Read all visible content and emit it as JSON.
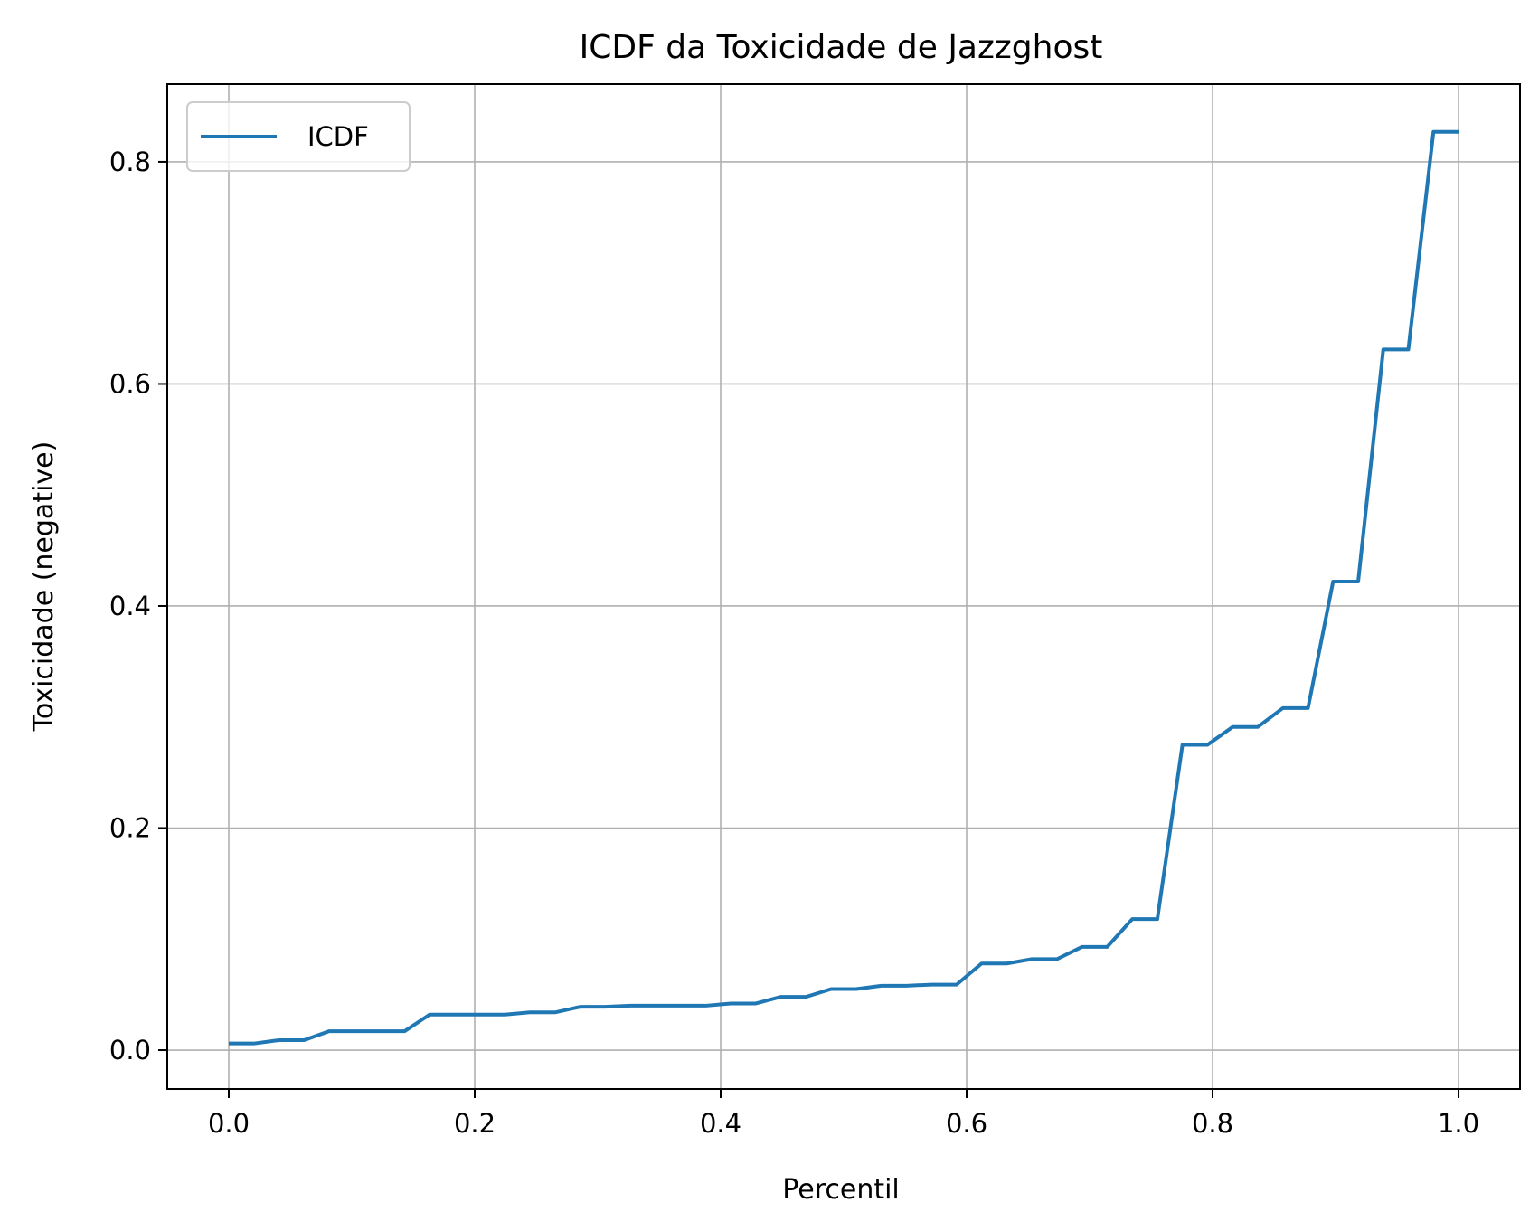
{
  "chart_data": {
    "type": "line",
    "title": "ICDF da Toxicidade de Jazzghost",
    "xlabel": "Percentil",
    "ylabel": "Toxicidade (negative)",
    "xlim": [
      -0.05,
      1.05
    ],
    "ylim": [
      -0.035,
      0.87
    ],
    "xticks": [
      0.0,
      0.2,
      0.4,
      0.6,
      0.8,
      1.0
    ],
    "xtick_labels": [
      "0.0",
      "0.2",
      "0.4",
      "0.6",
      "0.8",
      "1.0"
    ],
    "yticks": [
      0.0,
      0.2,
      0.4,
      0.6,
      0.8
    ],
    "ytick_labels": [
      "0.0",
      "0.2",
      "0.4",
      "0.6",
      "0.8"
    ],
    "grid": true,
    "legend_position": "top-left",
    "series": [
      {
        "name": "ICDF",
        "color": "#1f77b4",
        "x": [
          0.0,
          0.0204,
          0.0408,
          0.0612,
          0.0816,
          0.102,
          0.1224,
          0.1429,
          0.1633,
          0.1837,
          0.2041,
          0.2245,
          0.2449,
          0.2653,
          0.2857,
          0.3061,
          0.3265,
          0.3469,
          0.3673,
          0.3878,
          0.4082,
          0.4286,
          0.449,
          0.4694,
          0.4898,
          0.5102,
          0.5306,
          0.551,
          0.5714,
          0.5918,
          0.6122,
          0.6327,
          0.6531,
          0.6735,
          0.6939,
          0.7143,
          0.7347,
          0.7551,
          0.7755,
          0.7959,
          0.8163,
          0.8367,
          0.8571,
          0.8776,
          0.898,
          0.9184,
          0.9388,
          0.9592,
          0.9796,
          1.0
        ],
        "y": [
          0.006,
          0.006,
          0.009,
          0.009,
          0.017,
          0.017,
          0.017,
          0.017,
          0.032,
          0.032,
          0.032,
          0.032,
          0.034,
          0.034,
          0.039,
          0.039,
          0.04,
          0.04,
          0.04,
          0.04,
          0.042,
          0.042,
          0.048,
          0.048,
          0.055,
          0.055,
          0.058,
          0.058,
          0.059,
          0.059,
          0.078,
          0.078,
          0.082,
          0.082,
          0.093,
          0.093,
          0.118,
          0.118,
          0.275,
          0.275,
          0.291,
          0.291,
          0.308,
          0.308,
          0.422,
          0.422,
          0.631,
          0.631,
          0.827,
          0.827
        ]
      }
    ]
  },
  "colors": {
    "line": "#1f77b4",
    "grid": "#b0b0b0",
    "axes": "#000000"
  }
}
